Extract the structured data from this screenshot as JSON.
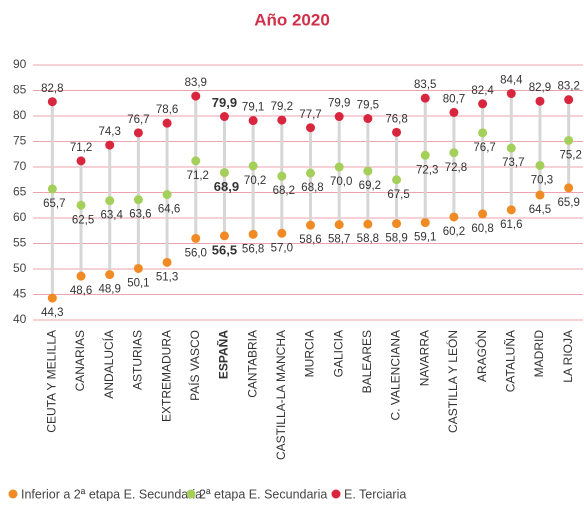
{
  "chart_data": {
    "type": "dot",
    "title": "Año 2020",
    "categories": [
      "CEUTA Y MELILLA",
      "CANARIAS",
      "ANDALUCÍA",
      "ASTURIAS",
      "EXTREMADURA",
      "PAÍS VASCO",
      "ESPAÑA",
      "CANTABRIA",
      "CASTILLA-LA MANCHA",
      "MURCIA",
      "GALICIA",
      "BALEARES",
      "C. VALENCIANA",
      "NAVARRA",
      "CASTILLA Y LEÓN",
      "ARAGÓN",
      "CATALUÑA",
      "MADRID",
      "LA RIOJA"
    ],
    "bold_categories": [
      "ESPAÑA"
    ],
    "series": [
      {
        "name": "Inferior a 2ª etapa E. Secundaria",
        "color": "#f08a24",
        "values": [
          44.3,
          48.6,
          48.9,
          50.1,
          51.3,
          56.0,
          56.5,
          56.8,
          57.0,
          58.6,
          58.7,
          58.8,
          58.9,
          59.1,
          60.2,
          60.8,
          61.6,
          64.5,
          65.9
        ],
        "value_labels": [
          "44,3",
          "48,6",
          "48,9",
          "50,1",
          "51,3",
          "56,0",
          "56,5",
          "56,8",
          "57,0",
          "58,6",
          "58,7",
          "58,8",
          "58,9",
          "59,1",
          "60,2",
          "60,8",
          "61,6",
          "64,5",
          "65,9"
        ]
      },
      {
        "name": "2ª etapa E. Secundaria",
        "color": "#a4cf5a",
        "values": [
          65.7,
          62.5,
          63.4,
          63.6,
          64.6,
          71.2,
          68.9,
          70.2,
          68.2,
          68.8,
          70.0,
          69.2,
          67.5,
          72.3,
          72.8,
          76.7,
          73.7,
          70.3,
          75.2
        ],
        "value_labels": [
          "65,7",
          "62,5",
          "63,4",
          "63,6",
          "64,6",
          "71,2",
          "68,9",
          "70,2",
          "68,2",
          "68,8",
          "70,0",
          "69,2",
          "67,5",
          "72,3",
          "72,8",
          "76,7",
          "73,7",
          "70,3",
          "75,2"
        ]
      },
      {
        "name": "E. Terciaria",
        "color": "#d9263f",
        "values": [
          82.8,
          71.2,
          74.3,
          76.7,
          78.6,
          83.9,
          79.9,
          79.1,
          79.2,
          77.7,
          79.9,
          79.5,
          76.8,
          83.5,
          80.7,
          82.4,
          84.4,
          82.9,
          83.2
        ],
        "value_labels": [
          "82,8",
          "71,2",
          "74,3",
          "76,7",
          "78,6",
          "83,9",
          "79,9",
          "79,1",
          "79,2",
          "77,7",
          "79,9",
          "79,5",
          "76,8",
          "83,5",
          "80,7",
          "82,4",
          "84,4",
          "82,9",
          "83,2"
        ]
      }
    ],
    "ylim": [
      40,
      90
    ],
    "yticks": [
      40,
      45,
      50,
      55,
      60,
      65,
      70,
      75,
      80,
      85,
      90
    ],
    "grid": true
  }
}
